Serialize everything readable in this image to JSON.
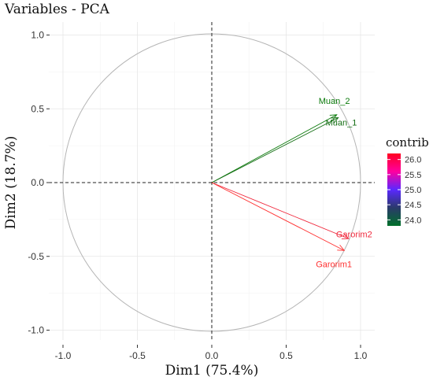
{
  "chart_data": {
    "type": "scatter",
    "title": "Variables - PCA",
    "xlabel": "Dim1 (75.4%)",
    "ylabel": "Dim2 (18.7%)",
    "xlim": [
      -1.1,
      1.1
    ],
    "ylim": [
      -1.0,
      1.0
    ],
    "x_ticks": [
      -1.0,
      -0.5,
      0.0,
      0.5,
      1.0
    ],
    "x_tick_labels": [
      "-1.0",
      "-0.5",
      "0.0",
      "0.5",
      "1.0"
    ],
    "y_ticks": [
      -1.0,
      -0.5,
      0.0,
      0.5,
      1.0
    ],
    "y_tick_labels": [
      "-1.0",
      "-0.5",
      "0.0",
      "0.5",
      "1.0"
    ],
    "grid": true,
    "correlation_circle": true,
    "variables": [
      {
        "name": "Muan_2",
        "x": 0.84,
        "y": 0.46,
        "contrib": 23.9,
        "color": "#0a7a0a"
      },
      {
        "name": "Muan_1",
        "x": 0.85,
        "y": 0.44,
        "contrib": 24.0,
        "color": "#146e14"
      },
      {
        "name": "Garorim2",
        "x": 0.92,
        "y": -0.38,
        "contrib": 26.0,
        "color": "#f0283c"
      },
      {
        "name": "Garorim1",
        "x": 0.89,
        "y": -0.46,
        "contrib": 26.1,
        "color": "#ff3030"
      }
    ],
    "legend": {
      "title": "contrib",
      "position": "right",
      "ticks": [
        26.0,
        25.5,
        25.0,
        24.5,
        24.0
      ],
      "tick_labels": [
        "26.0",
        "25.5",
        "25.0",
        "24.5",
        "24.0"
      ],
      "range": [
        23.8,
        26.2
      ],
      "gradient_colors": [
        "#ff0020",
        "#ff00a0",
        "#5a28ff",
        "#2a3a6a",
        "#00702a"
      ]
    }
  }
}
